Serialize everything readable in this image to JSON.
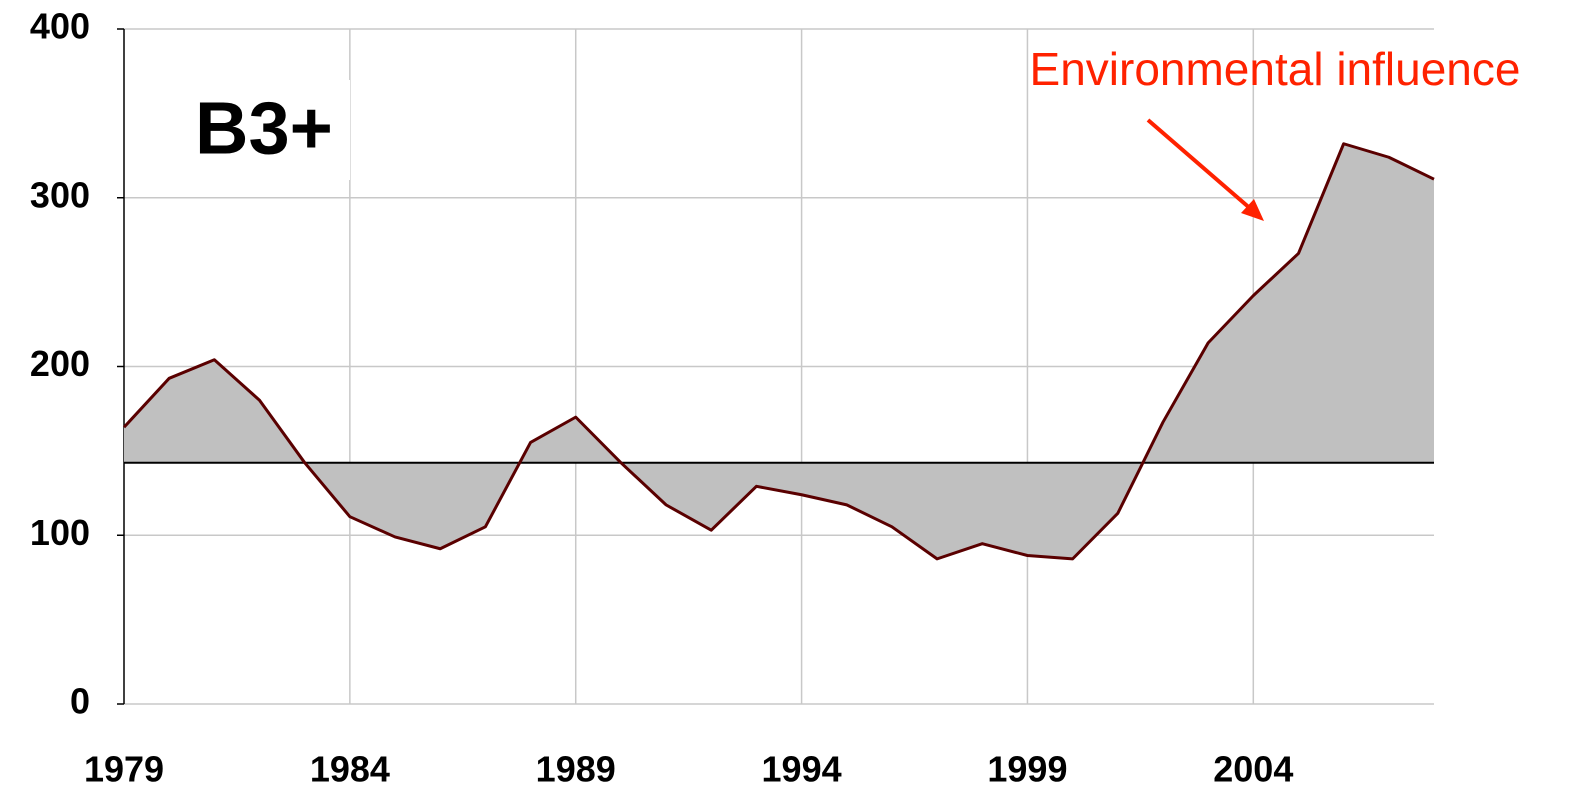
{
  "chart_data": {
    "type": "area",
    "title": "B3+",
    "annotation": "Environmental influence",
    "x": [
      1979,
      1980,
      1981,
      1982,
      1983,
      1984,
      1985,
      1986,
      1987,
      1988,
      1989,
      1990,
      1991,
      1992,
      1993,
      1994,
      1995,
      1996,
      1997,
      1998,
      1999,
      2000,
      2001,
      2002,
      2003,
      2004,
      2005,
      2006,
      2007,
      2008
    ],
    "values": [
      164,
      193,
      204,
      180,
      143,
      111,
      99,
      92,
      105,
      155,
      170,
      143,
      118,
      103,
      129,
      124,
      118,
      105,
      86,
      95,
      88,
      86,
      113,
      167,
      214,
      242,
      267,
      332,
      324,
      311
    ],
    "baseline": 143,
    "color": "#c0c0c0",
    "line_color": "#5a0000",
    "annotation_color": "#ff2200",
    "xlim": [
      1979,
      2008
    ],
    "xticks": [
      1979,
      1984,
      1989,
      1994,
      1999,
      2004
    ],
    "ylim": [
      0,
      400
    ],
    "yticks": [
      0,
      100,
      200,
      300,
      400
    ],
    "grid": true
  }
}
